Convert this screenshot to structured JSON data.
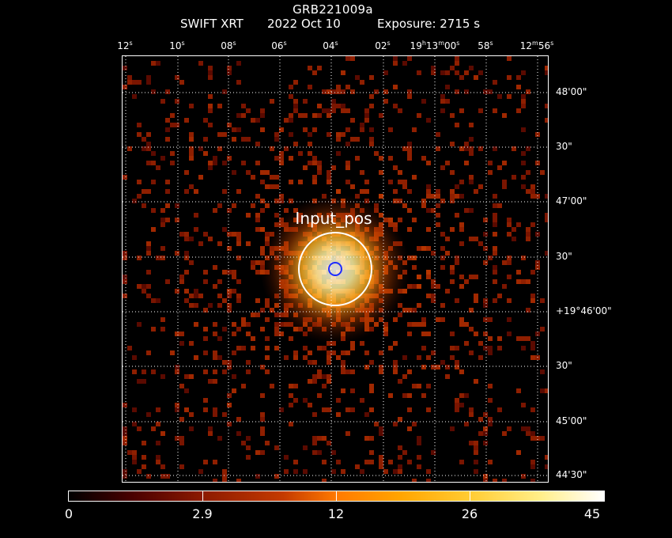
{
  "title": "GRB221009a",
  "subtitle": {
    "instrument": "SWIFT XRT",
    "date": "2022 Oct 10",
    "exposure": "Exposure: 2715 s"
  },
  "ra_axis": [
    "12s",
    "10s",
    "08s",
    "06s",
    "04s",
    "02s",
    "19h13m00s",
    "58s",
    "12m56s"
  ],
  "dec_axis": [
    "48'00\"",
    "30\"",
    "47'00\"",
    "30\"",
    "+19°46'00\"",
    "30\"",
    "45'00\"",
    "44'30\""
  ],
  "source_label": "Input_pos",
  "colorbar": {
    "ticks": [
      "0",
      "2.9",
      "12",
      "26",
      "45"
    ],
    "min": 0,
    "max": 45
  },
  "colors": {
    "background": "#000000",
    "grid": "#ffffff",
    "source_circle": "#ffffff",
    "input_pos_circle": "#1e2cff"
  }
}
